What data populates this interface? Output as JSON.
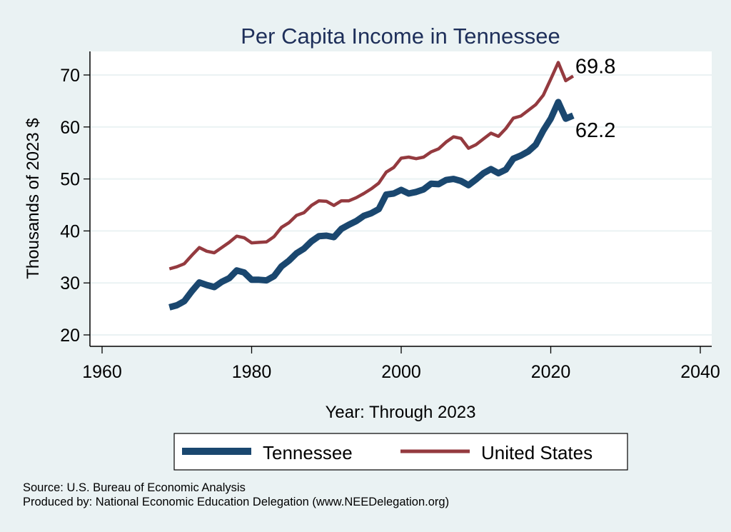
{
  "colors": {
    "background": "#eaf2f3",
    "plot_background": "#ffffff",
    "grid": "#eaf2f3",
    "title": "#1e2f5a",
    "tennessee": "#1a476f",
    "united_states": "#943a3f"
  },
  "chart_data": {
    "type": "line",
    "title": "Per Capita Income in Tennessee",
    "xlabel": "Year: Through 2023",
    "ylabel": "Thousands of 2023 $",
    "xlim": [
      1958,
      2043
    ],
    "ylim": [
      18,
      77
    ],
    "x_ticks": [
      1960,
      1980,
      2000,
      2020,
      2040
    ],
    "y_ticks": [
      20,
      30,
      40,
      50,
      60,
      70
    ],
    "grid": "horizontal",
    "legend_position": "bottom",
    "x": [
      1969,
      1970,
      1971,
      1972,
      1973,
      1974,
      1975,
      1976,
      1977,
      1978,
      1979,
      1980,
      1981,
      1982,
      1983,
      1984,
      1985,
      1986,
      1987,
      1988,
      1989,
      1990,
      1991,
      1992,
      1993,
      1994,
      1995,
      1996,
      1997,
      1998,
      1999,
      2000,
      2001,
      2002,
      2003,
      2004,
      2005,
      2006,
      2007,
      2008,
      2009,
      2010,
      2011,
      2012,
      2013,
      2014,
      2015,
      2016,
      2017,
      2018,
      2019,
      2020,
      2021,
      2022,
      2023
    ],
    "series": [
      {
        "name": "Tennessee",
        "key": "tennessee",
        "values": [
          25.3,
          25.7,
          26.5,
          28.4,
          30.1,
          29.6,
          29.2,
          30.2,
          30.9,
          32.4,
          32.0,
          30.6,
          30.6,
          30.5,
          31.3,
          33.2,
          34.3,
          35.7,
          36.6,
          38.0,
          39.0,
          39.1,
          38.8,
          40.4,
          41.2,
          41.9,
          42.9,
          43.4,
          44.2,
          47.0,
          47.2,
          47.9,
          47.2,
          47.5,
          48.0,
          49.1,
          49.0,
          49.8,
          50.0,
          49.6,
          48.8,
          49.9,
          51.1,
          51.9,
          51.1,
          51.8,
          53.9,
          54.5,
          55.3,
          56.6,
          59.3,
          61.6,
          64.8,
          61.6,
          62.2
        ],
        "end_label": "62.2"
      },
      {
        "name": "United States",
        "key": "united_states",
        "values": [
          32.7,
          33.1,
          33.7,
          35.3,
          36.8,
          36.1,
          35.8,
          36.8,
          37.8,
          39.0,
          38.7,
          37.7,
          37.8,
          37.9,
          38.9,
          40.7,
          41.6,
          43.0,
          43.5,
          44.9,
          45.8,
          45.7,
          44.9,
          45.8,
          45.8,
          46.4,
          47.2,
          48.1,
          49.2,
          51.3,
          52.2,
          54.0,
          54.2,
          53.9,
          54.2,
          55.2,
          55.8,
          57.1,
          58.1,
          57.8,
          55.9,
          56.6,
          57.7,
          58.8,
          58.2,
          59.7,
          61.7,
          62.1,
          63.2,
          64.3,
          66.1,
          69.2,
          72.4,
          68.9,
          69.8
        ],
        "end_label": "69.8"
      }
    ],
    "notes": [
      "Source: U.S. Bureau of Economic Analysis",
      "Produced by: National Economic Education Delegation (www.NEEDelegation.org)"
    ]
  }
}
